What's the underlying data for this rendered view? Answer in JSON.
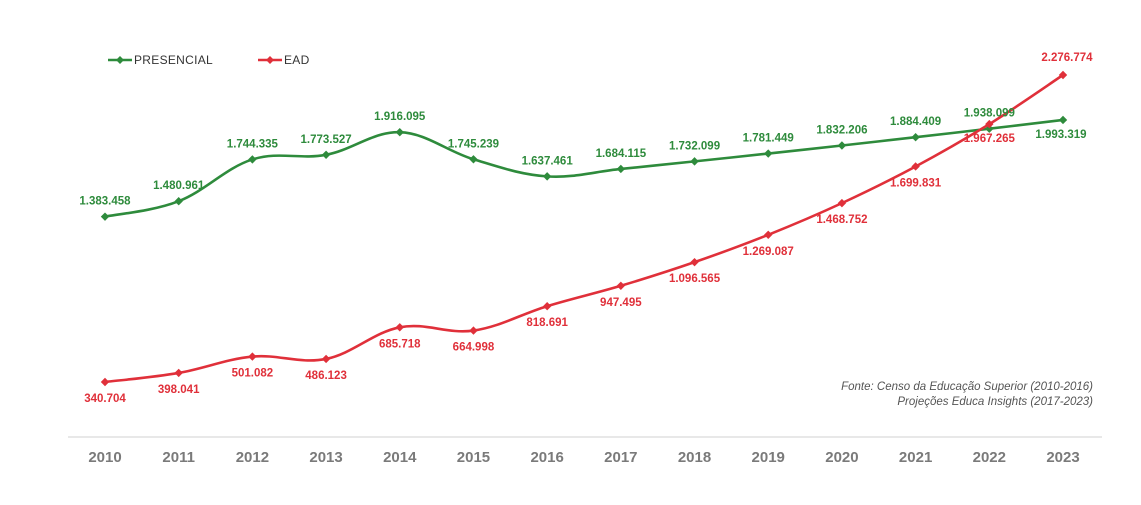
{
  "chart_data": {
    "type": "line",
    "x": [
      "2010",
      "2011",
      "2012",
      "2013",
      "2014",
      "2015",
      "2016",
      "2017",
      "2018",
      "2019",
      "2020",
      "2021",
      "2022",
      "2023"
    ],
    "series": [
      {
        "name": "PRESENCIAL",
        "color": "#2e8b3c",
        "values": [
          1383458,
          1480961,
          1744335,
          1773527,
          1916095,
          1745239,
          1637461,
          1684115,
          1732099,
          1781449,
          1832206,
          1884409,
          1938099,
          1993319
        ],
        "labels": [
          "1.383.458",
          "1.480.961",
          "1.744.335",
          "1.773.527",
          "1.916.095",
          "1.745.239",
          "1.637.461",
          "1.684.115",
          "1.732.099",
          "1.781.449",
          "1.832.206",
          "1.884.409",
          "1.938.099",
          "1.993.319"
        ]
      },
      {
        "name": "EAD",
        "color": "#e0303a",
        "values": [
          340704,
          398041,
          501082,
          486123,
          685718,
          664998,
          818691,
          947495,
          1096565,
          1269087,
          1468752,
          1699831,
          1967265,
          2276774
        ],
        "labels": [
          "340.704",
          "398.041",
          "501.082",
          "486.123",
          "685.718",
          "664.998",
          "818.691",
          "947.495",
          "1.096.565",
          "1.269.087",
          "1.468.752",
          "1.699.831",
          "1.967.265",
          "2.276.774"
        ]
      }
    ],
    "grid": false,
    "legend": "top-left"
  },
  "source": {
    "line1": "Fonte: Censo da Educação Superior (2010-2016)",
    "line2": "Projeções Educa Insights (2017-2023)"
  }
}
